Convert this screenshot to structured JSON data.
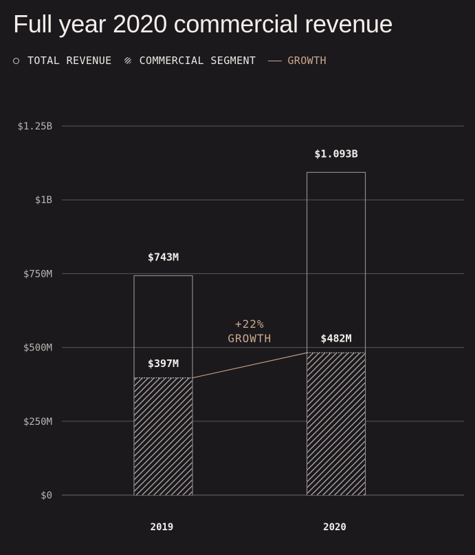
{
  "title": "Full year 2020 commercial revenue",
  "legend": {
    "total": "TOTAL REVENUE",
    "commercial": "COMMERCIAL SEGMENT",
    "growth": "GROWTH"
  },
  "colors": {
    "background": "#1c191d",
    "text": "#f2eeea",
    "axis_text": "#b9b5b1",
    "gridline": "#5a5659",
    "bar_outline": "#8e8a8d",
    "hatch": "#bdb9b5",
    "growth": "#c9a98c"
  },
  "chart_data": {
    "type": "bar",
    "title": "Full year 2020 commercial revenue",
    "categories": [
      "2019",
      "2020"
    ],
    "series": [
      {
        "name": "TOTAL REVENUE",
        "values": [
          743,
          1093
        ],
        "labels": [
          "$743M",
          "$1.093B"
        ]
      },
      {
        "name": "COMMERCIAL SEGMENT",
        "values": [
          397,
          482
        ],
        "labels": [
          "$397M",
          "$482M"
        ]
      }
    ],
    "growth": {
      "name": "GROWTH",
      "value_label": "+22%",
      "text_label": "GROWTH"
    },
    "y_ticks": [
      {
        "value": 0,
        "label": "$0"
      },
      {
        "value": 250,
        "label": "$250M"
      },
      {
        "value": 500,
        "label": "$500M"
      },
      {
        "value": 750,
        "label": "$750M"
      },
      {
        "value": 1000,
        "label": "$1B"
      },
      {
        "value": 1250,
        "label": "$1.25B"
      }
    ],
    "ylim": [
      0,
      1250
    ],
    "unit": "millions USD",
    "grid": true,
    "legend_position": "top-left"
  }
}
